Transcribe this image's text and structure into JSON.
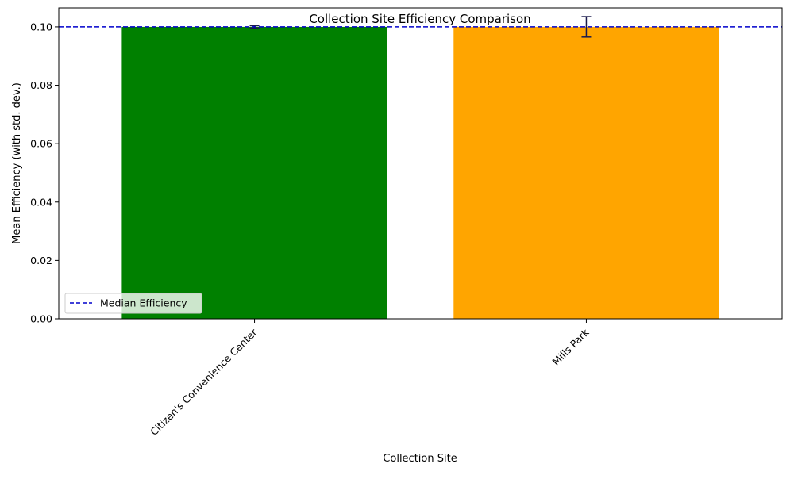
{
  "chart_data": {
    "type": "bar",
    "title": "Collection Site Efficiency Comparison",
    "xlabel": "Collection Site",
    "ylabel": "Mean Efficiency (with std. dev.)",
    "categories": [
      "Citizen's Convenience Center",
      "Mills Park"
    ],
    "values": [
      0.1,
      0.1
    ],
    "errors": [
      0.0004,
      0.0035
    ],
    "colors": [
      "#008000",
      "#ffa500"
    ],
    "ylim": [
      0,
      0.1065
    ],
    "yticks": [
      0.0,
      0.02,
      0.04,
      0.06,
      0.08,
      0.1
    ],
    "ytick_labels": [
      "0.00",
      "0.02",
      "0.04",
      "0.06",
      "0.08",
      "0.10"
    ],
    "median_line": {
      "value": 0.1,
      "color": "#0000cc",
      "label": "Median Efficiency"
    },
    "error_color": "#1a1a4d",
    "legend": {
      "position": "lower-left",
      "entries": [
        "Median Efficiency"
      ]
    },
    "grid": false
  }
}
